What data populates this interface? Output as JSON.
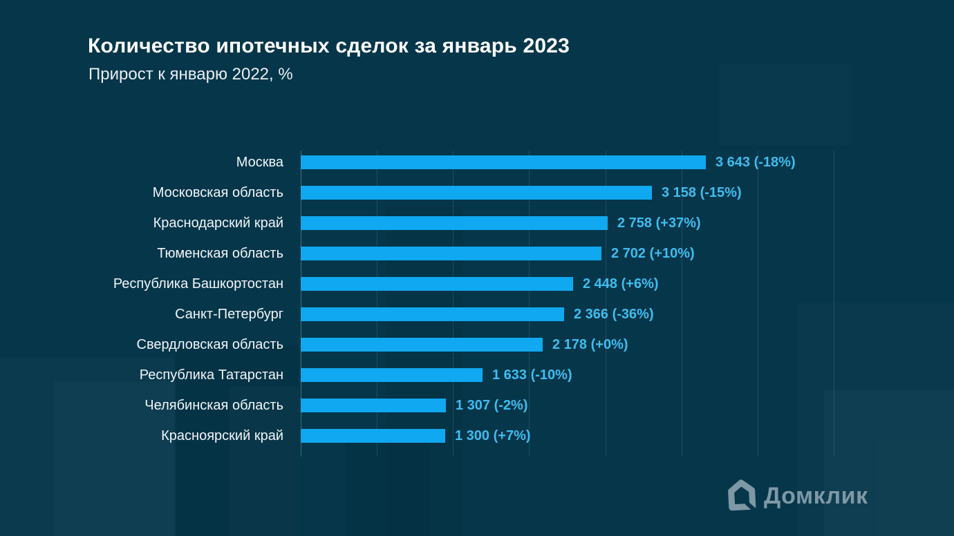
{
  "header": {
    "title": "Количество ипотечных сделок за январь 2023",
    "subtitle": "Прирост к январю 2022, %"
  },
  "chart_data": {
    "type": "bar",
    "orientation": "horizontal",
    "title": "Количество ипотечных сделок за январь 2023",
    "subtitle": "Прирост к январю 2022, %",
    "categories": [
      "Москва",
      "Московская область",
      "Краснодарский край",
      "Тюменская область",
      "Республика Башкортостан",
      "Санкт-Петербург",
      "Свердловская область",
      "Республика Татарстан",
      "Челябинская область",
      "Красноярский край"
    ],
    "values": [
      3643,
      3158,
      2758,
      2702,
      2448,
      2366,
      2178,
      1633,
      1307,
      1300
    ],
    "growth_pct": [
      -18,
      -15,
      37,
      10,
      6,
      -36,
      0,
      -10,
      -2,
      7
    ],
    "value_labels": [
      "3 643 (-18%)",
      "3 158 (-15%)",
      "2 758 (+37%)",
      "2 702 (+10%)",
      "2 448 (+6%)",
      "2 366 (-36%)",
      "2 178 (+0%)",
      "1 633 (-10%)",
      "1 307 (-2%)",
      "1 300 (+7%)"
    ],
    "xlim": [
      0,
      4792
    ],
    "gridlines": 8,
    "legend": false,
    "ylabel": "",
    "xlabel": ""
  },
  "logo": {
    "text": "Домклик",
    "icon": "domclick-house-icon"
  },
  "colors": {
    "background": "#06364a",
    "bar": "#10a8f0",
    "value_text": "#3fbdf0",
    "label_text": "#f2f6f8",
    "title_text": "#ffffff",
    "subtitle_text": "#e9eff3",
    "grid_line": "rgba(160,200,220,0.16)",
    "axis_line": "rgba(170,205,220,0.38)",
    "logo": "#7e98a5"
  }
}
